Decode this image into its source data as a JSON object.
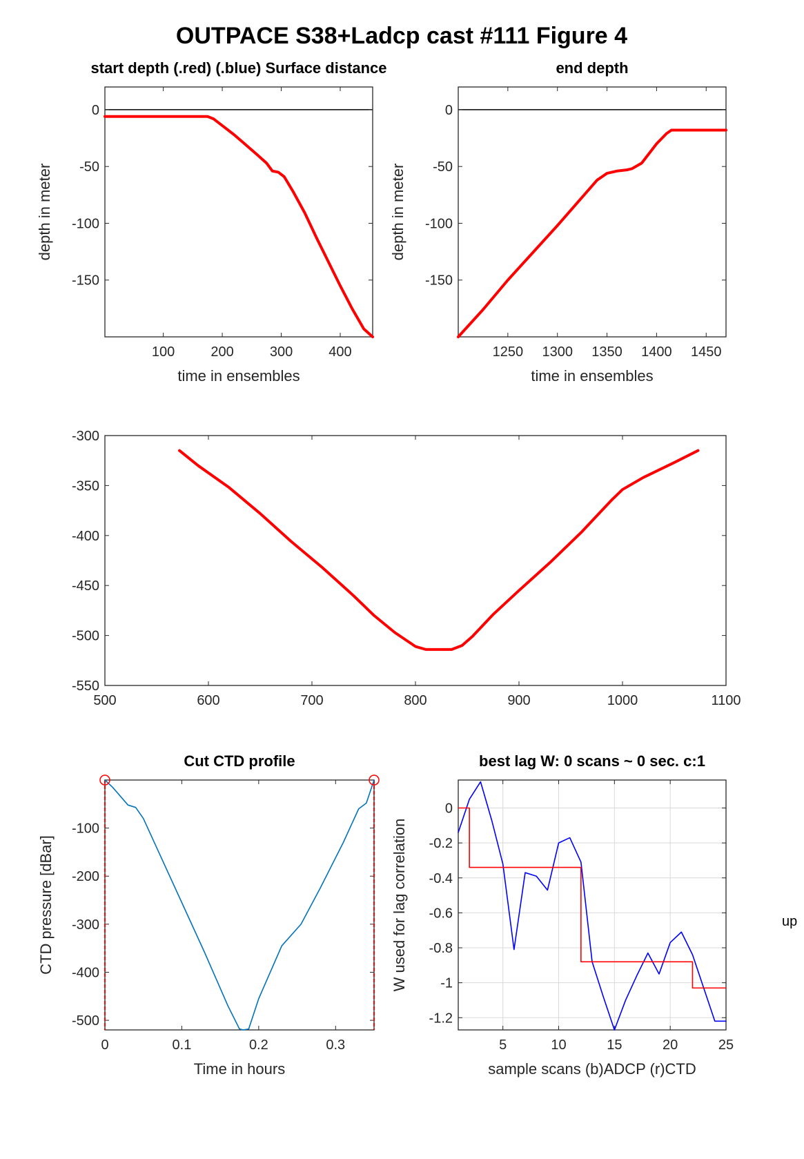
{
  "figure": {
    "title": "OUTPACE S38+Ladcp cast #111    Figure 4",
    "side_text": "up"
  },
  "chart_data": [
    {
      "id": "start",
      "type": "line",
      "title": "start depth (.red) (.blue) Surface distance",
      "xlabel": "time in ensembles",
      "ylabel": "depth in meter",
      "xlim": [
        1,
        455
      ],
      "ylim": [
        -200,
        20
      ],
      "xticks": [
        100,
        200,
        300,
        400
      ],
      "yticks": [
        0,
        -50,
        -100,
        -150
      ],
      "grid": false,
      "reference_line": {
        "y": 0,
        "color": "#000000"
      },
      "series": [
        {
          "color": "#ff0000",
          "x": [
            1,
            50,
            100,
            150,
            175,
            185,
            200,
            220,
            240,
            260,
            275,
            285,
            295,
            305,
            320,
            340,
            360,
            380,
            400,
            420,
            440,
            455
          ],
          "y": [
            -6,
            -6,
            -6,
            -6,
            -6,
            -8,
            -14,
            -22,
            -31,
            -40,
            -47,
            -54,
            -55,
            -59,
            -72,
            -91,
            -113,
            -134,
            -155,
            -175,
            -193,
            -200
          ]
        }
      ]
    },
    {
      "id": "end",
      "type": "line",
      "title": "end depth",
      "xlabel": "time in ensembles",
      "ylabel": "depth in meter",
      "xlim": [
        1200,
        1470
      ],
      "ylim": [
        -200,
        20
      ],
      "xticks": [
        1250,
        1300,
        1350,
        1400,
        1450
      ],
      "yticks": [
        0,
        -50,
        -100,
        -150
      ],
      "grid": false,
      "reference_line": {
        "y": 0,
        "color": "#000000"
      },
      "series": [
        {
          "color": "#ff0000",
          "x": [
            1200,
            1225,
            1250,
            1275,
            1300,
            1320,
            1340,
            1350,
            1360,
            1370,
            1375,
            1385,
            1400,
            1410,
            1415,
            1440,
            1470
          ],
          "y": [
            -200,
            -176,
            -150,
            -126,
            -102,
            -82,
            -62,
            -56,
            -54,
            -53,
            -52,
            -47,
            -30,
            -21,
            -18,
            -18,
            -18
          ]
        }
      ]
    },
    {
      "id": "mid",
      "type": "line",
      "title": "",
      "xlabel": "",
      "ylabel": "",
      "xlim": [
        500,
        1100
      ],
      "ylim": [
        -550,
        -300
      ],
      "xticks": [
        500,
        600,
        700,
        800,
        900,
        1000,
        1100
      ],
      "yticks": [
        -300,
        -350,
        -400,
        -450,
        -500,
        -550
      ],
      "grid": false,
      "series": [
        {
          "color": "#ff0000",
          "x": [
            572,
            590,
            620,
            650,
            680,
            710,
            740,
            760,
            780,
            800,
            810,
            835,
            845,
            855,
            875,
            900,
            930,
            960,
            990,
            1000,
            1020,
            1050,
            1073
          ],
          "y": [
            -315,
            -330,
            -352,
            -378,
            -406,
            -432,
            -460,
            -480,
            -497,
            -511,
            -514,
            -514,
            -510,
            -501,
            -479,
            -455,
            -427,
            -397,
            -364,
            -354,
            -342,
            -327,
            -315
          ]
        }
      ]
    },
    {
      "id": "ctd",
      "type": "line",
      "title": "Cut CTD profile",
      "xlabel": "Time in hours",
      "ylabel": "CTD pressure [dBar]",
      "xlim": [
        0,
        0.35
      ],
      "ylim": [
        -520,
        0
      ],
      "xticks": [
        0,
        0.1,
        0.2,
        0.3
      ],
      "ytick_labels": [
        "-100",
        "-200",
        "-300",
        "-400",
        "-500"
      ],
      "yticks": [
        -100,
        -200,
        -300,
        -400,
        -500
      ],
      "grid": false,
      "markers": [
        {
          "x": 0,
          "y": 0,
          "color": "#ff0000"
        },
        {
          "x": 0.35,
          "y": 0,
          "color": "#ff0000"
        }
      ],
      "vlines": [
        {
          "x": 0,
          "color": "#ff0000"
        },
        {
          "x": 0.35,
          "color": "#ff0000"
        }
      ],
      "series": [
        {
          "color": "#0072bd",
          "x": [
            0,
            0.01,
            0.03,
            0.04,
            0.05,
            0.07,
            0.1,
            0.13,
            0.16,
            0.175,
            0.18,
            0.187,
            0.2,
            0.23,
            0.255,
            0.28,
            0.31,
            0.33,
            0.34,
            0.35
          ],
          "y": [
            0,
            -15,
            -52,
            -57,
            -80,
            -150,
            -255,
            -360,
            -470,
            -518,
            -520,
            -518,
            -455,
            -345,
            -300,
            -225,
            -130,
            -60,
            -48,
            0
          ]
        }
      ]
    },
    {
      "id": "lag",
      "type": "line",
      "title": "best lag W: 0 scans ~ 0 sec.  c:1",
      "xlabel": "sample scans (b)ADCP (r)CTD",
      "ylabel": "W used for lag correlation",
      "xlim": [
        1,
        25
      ],
      "ylim": [
        -1.27,
        0.16
      ],
      "xticks": [
        5,
        10,
        15,
        20,
        25
      ],
      "yticks": [
        0,
        -0.2,
        -0.4,
        -0.6,
        -0.8,
        -1,
        -1.2
      ],
      "grid": true,
      "series": [
        {
          "color": "#0000ff",
          "x": [
            1,
            2,
            3,
            4,
            5,
            6,
            7,
            8,
            9,
            10,
            11,
            12,
            13,
            14,
            15,
            16,
            17,
            18,
            19,
            20,
            21,
            22,
            23,
            24,
            25
          ],
          "y": [
            -0.14,
            0.05,
            0.15,
            -0.07,
            -0.32,
            -0.81,
            -0.37,
            -0.39,
            -0.47,
            -0.2,
            -0.17,
            -0.31,
            -0.88,
            -1.08,
            -1.27,
            -1.1,
            -0.96,
            -0.83,
            -0.95,
            -0.77,
            -0.71,
            -0.84,
            -1.03,
            -1.22,
            -1.22
          ]
        },
        {
          "color": "#ff0000",
          "x": [
            1,
            2,
            3,
            4,
            5,
            6,
            7,
            8,
            9,
            10,
            11,
            12,
            13,
            14,
            15,
            16,
            17,
            18,
            19,
            20,
            21,
            22,
            23,
            24,
            25
          ],
          "y": [
            0,
            -0.34,
            -0.34,
            -0.34,
            -0.34,
            -0.34,
            -0.34,
            -0.34,
            -0.34,
            -0.34,
            -0.34,
            -0.88,
            -0.88,
            -0.88,
            -0.88,
            -0.88,
            -0.88,
            -0.88,
            -0.88,
            -0.88,
            -0.88,
            -1.03,
            -1.03,
            -1.03,
            -1.03
          ],
          "step": true
        }
      ]
    }
  ]
}
